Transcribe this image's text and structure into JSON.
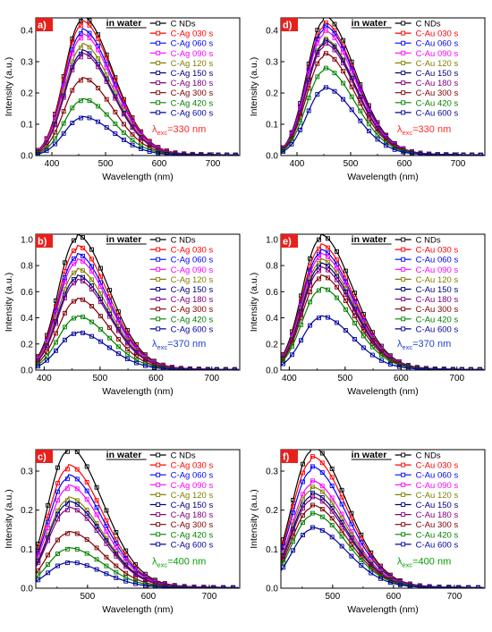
{
  "chart_data": [
    {
      "type": "line",
      "panel_label": "a)",
      "annotation": "in water",
      "excitation": {
        "prefix": "λ",
        "sub": "exc",
        "value": "=330 nm",
        "color": "#ff2a2a"
      },
      "xlabel": "Wavelength (nm)",
      "ylabel": "Intensity (a.u.)",
      "xlim": [
        370,
        750
      ],
      "ylim": [
        0,
        0.44
      ],
      "xticks": [
        400,
        500,
        600,
        700
      ],
      "yticks": [
        0.0,
        0.1,
        0.2,
        0.3,
        0.4
      ],
      "ytick_labels": [
        "0.0",
        "0.1",
        "0.2",
        "0.3",
        "0.4"
      ],
      "peak_x": 455,
      "series": [
        {
          "name": "C NDs",
          "color": "#000000",
          "peak": 0.43
        },
        {
          "name": "C-Ag 030 s",
          "color": "#ff0000",
          "peak": 0.415
        },
        {
          "name": "C-Ag 060 s",
          "color": "#0000ff",
          "peak": 0.39
        },
        {
          "name": "C-Ag 090 s",
          "color": "#ff00ff",
          "peak": 0.375
        },
        {
          "name": "C-Ag 120 s",
          "color": "#808000",
          "peak": 0.345
        },
        {
          "name": "C-Ag 150 s",
          "color": "#000080",
          "peak": 0.325
        },
        {
          "name": "C-Ag 180 s",
          "color": "#800080",
          "peak": 0.315
        },
        {
          "name": "C-Ag 300 s",
          "color": "#800000",
          "peak": 0.24
        },
        {
          "name": "C-Ag 420 s",
          "color": "#008000",
          "peak": 0.175
        },
        {
          "name": "C-Ag 600 s",
          "color": "#0000a0",
          "peak": 0.12
        }
      ]
    },
    {
      "type": "line",
      "panel_label": "d)",
      "annotation": "in water",
      "excitation": {
        "prefix": "λ",
        "sub": "exc",
        "value": "=330 nm",
        "color": "#ff2a2a"
      },
      "xlabel": "Wavelength (nm)",
      "ylabel": "Intensity (a.u.)",
      "xlim": [
        370,
        750
      ],
      "ylim": [
        0,
        0.44
      ],
      "xticks": [
        400,
        500,
        600,
        700
      ],
      "yticks": [
        0.0,
        0.1,
        0.2,
        0.3,
        0.4
      ],
      "ytick_labels": [
        "0.0",
        "0.1",
        "0.2",
        "0.3",
        "0.4"
      ],
      "peak_x": 450,
      "series": [
        {
          "name": "C NDs",
          "color": "#000000",
          "peak": 0.43
        },
        {
          "name": "C-Au 030 s",
          "color": "#ff0000",
          "peak": 0.41
        },
        {
          "name": "C-Au 060 s",
          "color": "#0000ff",
          "peak": 0.4
        },
        {
          "name": "C-Au 090 s",
          "color": "#ff00ff",
          "peak": 0.385
        },
        {
          "name": "C-Au 120 s",
          "color": "#808000",
          "peak": 0.36
        },
        {
          "name": "C-Au 150 s",
          "color": "#000080",
          "peak": 0.355
        },
        {
          "name": "C-Au 180 s",
          "color": "#800080",
          "peak": 0.345
        },
        {
          "name": "C-Au 300 s",
          "color": "#800000",
          "peak": 0.315
        },
        {
          "name": "C-Au 420 s",
          "color": "#008000",
          "peak": 0.27
        },
        {
          "name": "C-Au 600 s",
          "color": "#0000a0",
          "peak": 0.21
        }
      ]
    },
    {
      "type": "line",
      "panel_label": "b)",
      "annotation": "in water",
      "excitation": {
        "prefix": "λ",
        "sub": "exc",
        "value": "=370 nm",
        "color": "#1f3fd0"
      },
      "xlabel": "Wavelength (nm)",
      "ylabel": "Intensity (a.u.)",
      "xlim": [
        385,
        750
      ],
      "ylim": [
        0,
        1.04
      ],
      "xticks": [
        400,
        500,
        600,
        700
      ],
      "yticks": [
        0.0,
        0.2,
        0.4,
        0.6,
        0.8,
        1.0
      ],
      "ytick_labels": [
        "0.0",
        "0.2",
        "0.4",
        "0.6",
        "0.8",
        "1.0"
      ],
      "peak_x": 457,
      "series": [
        {
          "name": "C NDs",
          "color": "#000000",
          "peak": 1.0
        },
        {
          "name": "C-Ag 030 s",
          "color": "#ff0000",
          "peak": 0.92
        },
        {
          "name": "C-Ag 060 s",
          "color": "#0000ff",
          "peak": 0.86
        },
        {
          "name": "C-Ag 090 s",
          "color": "#ff00ff",
          "peak": 0.82
        },
        {
          "name": "C-Ag 120 s",
          "color": "#808000",
          "peak": 0.75
        },
        {
          "name": "C-Ag 150 s",
          "color": "#000080",
          "peak": 0.7
        },
        {
          "name": "C-Ag 180 s",
          "color": "#800080",
          "peak": 0.67
        },
        {
          "name": "C-Ag 300 s",
          "color": "#800000",
          "peak": 0.53
        },
        {
          "name": "C-Ag 420 s",
          "color": "#008000",
          "peak": 0.4
        },
        {
          "name": "C-Ag 600 s",
          "color": "#0000a0",
          "peak": 0.28
        }
      ]
    },
    {
      "type": "line",
      "panel_label": "e)",
      "annotation": "in water",
      "excitation": {
        "prefix": "λ",
        "sub": "exc",
        "value": "=370 nm",
        "color": "#1f3fd0"
      },
      "xlabel": "Wavelength (nm)",
      "ylabel": "Intensity (a.u.)",
      "xlim": [
        385,
        750
      ],
      "ylim": [
        0,
        1.04
      ],
      "xticks": [
        400,
        500,
        600,
        700
      ],
      "yticks": [
        0.0,
        0.2,
        0.4,
        0.6,
        0.8,
        1.0
      ],
      "ytick_labels": [
        "0.0",
        "0.2",
        "0.4",
        "0.6",
        "0.8",
        "1.0"
      ],
      "peak_x": 455,
      "series": [
        {
          "name": "C NDs",
          "color": "#000000",
          "peak": 1.0
        },
        {
          "name": "C-Au 030 s",
          "color": "#ff0000",
          "peak": 0.93
        },
        {
          "name": "C-Au 060 s",
          "color": "#0000ff",
          "peak": 0.89
        },
        {
          "name": "C-Au 090 s",
          "color": "#ff00ff",
          "peak": 0.86
        },
        {
          "name": "C-Au 120 s",
          "color": "#808000",
          "peak": 0.82
        },
        {
          "name": "C-Au 150 s",
          "color": "#000080",
          "peak": 0.79
        },
        {
          "name": "C-Au 180 s",
          "color": "#800080",
          "peak": 0.76
        },
        {
          "name": "C-Au 300 s",
          "color": "#800000",
          "peak": 0.7
        },
        {
          "name": "C-Au 420 s",
          "color": "#008000",
          "peak": 0.61
        },
        {
          "name": "C-Au 600 s",
          "color": "#0000a0",
          "peak": 0.4
        }
      ]
    },
    {
      "type": "line",
      "panel_label": "c)",
      "annotation": "in water",
      "excitation": {
        "prefix": "λ",
        "sub": "exc",
        "value": "=400 nm",
        "color": "#00a000"
      },
      "xlabel": "Wavelength (nm)",
      "ylabel": "Intensity (a.u.)",
      "xlim": [
        415,
        750
      ],
      "ylim": [
        0,
        0.355
      ],
      "xticks": [
        500,
        600,
        700
      ],
      "yticks": [
        0.0,
        0.1,
        0.2,
        0.3
      ],
      "ytick_labels": [
        "0.0",
        "0.1",
        "0.2",
        "0.3"
      ],
      "peak_x": 467,
      "series": [
        {
          "name": "C NDs",
          "color": "#000000",
          "peak": 0.35
        },
        {
          "name": "C-Ag 030 s",
          "color": "#ff0000",
          "peak": 0.305
        },
        {
          "name": "C-Ag 060 s",
          "color": "#0000ff",
          "peak": 0.28
        },
        {
          "name": "C-Ag 090 s",
          "color": "#ff00ff",
          "peak": 0.255
        },
        {
          "name": "C-Ag 120 s",
          "color": "#808000",
          "peak": 0.225
        },
        {
          "name": "C-Ag 150 s",
          "color": "#000080",
          "peak": 0.215
        },
        {
          "name": "C-Ag 180 s",
          "color": "#800080",
          "peak": 0.2
        },
        {
          "name": "C-Ag 300 s",
          "color": "#800000",
          "peak": 0.14
        },
        {
          "name": "C-Ag 420 s",
          "color": "#008000",
          "peak": 0.1
        },
        {
          "name": "C-Ag 600 s",
          "color": "#0000a0",
          "peak": 0.065
        }
      ]
    },
    {
      "type": "line",
      "panel_label": "f)",
      "annotation": "in water",
      "excitation": {
        "prefix": "λ",
        "sub": "exc",
        "value": "=400 nm",
        "color": "#00a000"
      },
      "xlabel": "Wavelength (nm)",
      "ylabel": "Intensity (a.u.)",
      "xlim": [
        415,
        750
      ],
      "ylim": [
        0,
        0.355
      ],
      "xticks": [
        500,
        600,
        700
      ],
      "yticks": [
        0.0,
        0.1,
        0.2,
        0.3
      ],
      "ytick_labels": [
        "0.0",
        "0.1",
        "0.2",
        "0.3"
      ],
      "peak_x": 465,
      "series": [
        {
          "name": "C NDs",
          "color": "#000000",
          "peak": 0.35
        },
        {
          "name": "C-Au 030 s",
          "color": "#ff0000",
          "peak": 0.325
        },
        {
          "name": "C-Au 060 s",
          "color": "#0000ff",
          "peak": 0.3
        },
        {
          "name": "C-Au 090 s",
          "color": "#ff00ff",
          "peak": 0.265
        },
        {
          "name": "C-Au 120 s",
          "color": "#808000",
          "peak": 0.25
        },
        {
          "name": "C-Au 150 s",
          "color": "#000080",
          "peak": 0.235
        },
        {
          "name": "C-Au 180 s",
          "color": "#800080",
          "peak": 0.225
        },
        {
          "name": "C-Au 300 s",
          "color": "#800000",
          "peak": 0.205
        },
        {
          "name": "C-Au 420 s",
          "color": "#008000",
          "peak": 0.185
        },
        {
          "name": "C-Au 600 s",
          "color": "#0000a0",
          "peak": 0.15
        }
      ]
    }
  ]
}
